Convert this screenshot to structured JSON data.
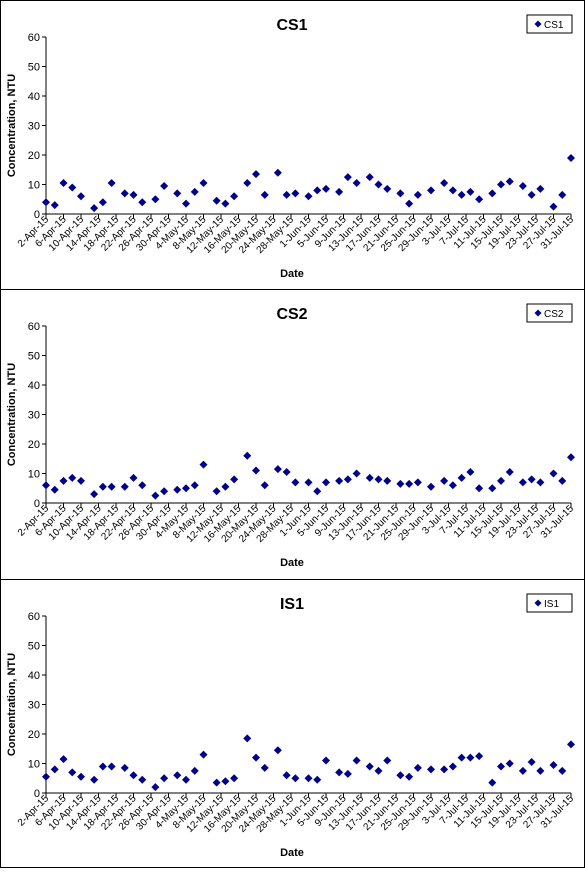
{
  "chart_data": [
    {
      "type": "scatter",
      "title": "CS1",
      "xlabel": "Date",
      "ylabel": "Concentration, NTU",
      "ylim": [
        0,
        60
      ],
      "yticks": [
        0,
        10,
        20,
        30,
        40,
        50,
        60
      ],
      "xlim": [
        "2015-04-02",
        "2015-07-31"
      ],
      "xtick_labels": [
        "2-Apr-15",
        "6-Apr-15",
        "10-Apr-15",
        "14-Apr-15",
        "18-Apr-15",
        "22-Apr-15",
        "26-Apr-15",
        "30-Apr-15",
        "4-May-15",
        "8-May-15",
        "12-May-15",
        "16-May-15",
        "20-May-15",
        "24-May-15",
        "28-May-15",
        "1-Jun-15",
        "5-Jun-15",
        "9-Jun-15",
        "13-Jun-15",
        "17-Jun-15",
        "21-Jun-15",
        "25-Jun-15",
        "29-Jun-15",
        "3-Jul-15",
        "7-Jul-15",
        "11-Jul-15",
        "15-Jul-15",
        "19-Jul-15",
        "23-Jul-15",
        "27-Jul-15",
        "31-Jul-15"
      ],
      "grid": false,
      "legend_position": "top-right",
      "marker_color": "#00008b",
      "series": [
        {
          "name": "CS1",
          "points": [
            [
              "2015-04-02",
              4
            ],
            [
              "2015-04-04",
              3
            ],
            [
              "2015-04-06",
              10.5
            ],
            [
              "2015-04-08",
              9
            ],
            [
              "2015-04-10",
              6
            ],
            [
              "2015-04-13",
              2
            ],
            [
              "2015-04-15",
              4
            ],
            [
              "2015-04-17",
              10.5
            ],
            [
              "2015-04-20",
              7
            ],
            [
              "2015-04-22",
              6.5
            ],
            [
              "2015-04-24",
              4
            ],
            [
              "2015-04-27",
              5
            ],
            [
              "2015-04-29",
              9.5
            ],
            [
              "2015-05-02",
              7
            ],
            [
              "2015-05-04",
              3.5
            ],
            [
              "2015-05-06",
              7.5
            ],
            [
              "2015-05-08",
              10.5
            ],
            [
              "2015-05-11",
              4.5
            ],
            [
              "2015-05-13",
              3.5
            ],
            [
              "2015-05-15",
              6
            ],
            [
              "2015-05-18",
              10.5
            ],
            [
              "2015-05-20",
              13.5
            ],
            [
              "2015-05-22",
              6.5
            ],
            [
              "2015-05-25",
              14
            ],
            [
              "2015-05-27",
              6.5
            ],
            [
              "2015-05-29",
              7
            ],
            [
              "2015-06-01",
              6
            ],
            [
              "2015-06-03",
              8
            ],
            [
              "2015-06-05",
              8.5
            ],
            [
              "2015-06-08",
              7.5
            ],
            [
              "2015-06-10",
              12.5
            ],
            [
              "2015-06-12",
              10.5
            ],
            [
              "2015-06-15",
              12.5
            ],
            [
              "2015-06-17",
              10
            ],
            [
              "2015-06-19",
              8.5
            ],
            [
              "2015-06-22",
              7
            ],
            [
              "2015-06-24",
              3.5
            ],
            [
              "2015-06-26",
              6.5
            ],
            [
              "2015-06-29",
              8
            ],
            [
              "2015-07-02",
              10.5
            ],
            [
              "2015-07-04",
              8
            ],
            [
              "2015-07-06",
              6.5
            ],
            [
              "2015-07-08",
              7.5
            ],
            [
              "2015-07-10",
              5
            ],
            [
              "2015-07-13",
              7
            ],
            [
              "2015-07-15",
              10
            ],
            [
              "2015-07-17",
              11
            ],
            [
              "2015-07-20",
              9.5
            ],
            [
              "2015-07-22",
              6.5
            ],
            [
              "2015-07-24",
              8.5
            ],
            [
              "2015-07-27",
              2.5
            ],
            [
              "2015-07-29",
              6.5
            ],
            [
              "2015-07-31",
              19
            ]
          ]
        }
      ]
    },
    {
      "type": "scatter",
      "title": "CS2",
      "xlabel": "Date",
      "ylabel": "Concentration, NTU",
      "ylim": [
        0,
        60
      ],
      "yticks": [
        0,
        10,
        20,
        30,
        40,
        50,
        60
      ],
      "xlim": [
        "2015-04-02",
        "2015-07-31"
      ],
      "xtick_labels": [
        "2-Apr-15",
        "6-Apr-15",
        "10-Apr-15",
        "14-Apr-15",
        "18-Apr-15",
        "22-Apr-15",
        "26-Apr-15",
        "30-Apr-15",
        "4-May-15",
        "8-May-15",
        "12-May-15",
        "16-May-15",
        "20-May-15",
        "24-May-15",
        "28-May-15",
        "1-Jun-15",
        "5-Jun-15",
        "9-Jun-15",
        "13-Jun-15",
        "17-Jun-15",
        "21-Jun-15",
        "25-Jun-15",
        "29-Jun-15",
        "3-Jul-15",
        "7-Jul-15",
        "11-Jul-15",
        "15-Jul-15",
        "19-Jul-15",
        "23-Jul-15",
        "27-Jul-15",
        "31-Jul-15"
      ],
      "grid": false,
      "legend_position": "top-right",
      "marker_color": "#00008b",
      "series": [
        {
          "name": "CS2",
          "points": [
            [
              "2015-04-02",
              6
            ],
            [
              "2015-04-04",
              4.5
            ],
            [
              "2015-04-06",
              7.5
            ],
            [
              "2015-04-08",
              8.5
            ],
            [
              "2015-04-10",
              7.5
            ],
            [
              "2015-04-13",
              3
            ],
            [
              "2015-04-15",
              5.5
            ],
            [
              "2015-04-17",
              5.5
            ],
            [
              "2015-04-20",
              5.5
            ],
            [
              "2015-04-22",
              8.5
            ],
            [
              "2015-04-24",
              6
            ],
            [
              "2015-04-27",
              2.5
            ],
            [
              "2015-04-29",
              4
            ],
            [
              "2015-05-02",
              4.5
            ],
            [
              "2015-05-04",
              5
            ],
            [
              "2015-05-06",
              6
            ],
            [
              "2015-05-08",
              13
            ],
            [
              "2015-05-11",
              4
            ],
            [
              "2015-05-13",
              5.5
            ],
            [
              "2015-05-15",
              8
            ],
            [
              "2015-05-18",
              16
            ],
            [
              "2015-05-20",
              11
            ],
            [
              "2015-05-22",
              6
            ],
            [
              "2015-05-25",
              11.5
            ],
            [
              "2015-05-27",
              10.5
            ],
            [
              "2015-05-29",
              7
            ],
            [
              "2015-06-01",
              7
            ],
            [
              "2015-06-03",
              4
            ],
            [
              "2015-06-05",
              7
            ],
            [
              "2015-06-08",
              7.5
            ],
            [
              "2015-06-10",
              8
            ],
            [
              "2015-06-12",
              10
            ],
            [
              "2015-06-15",
              8.5
            ],
            [
              "2015-06-17",
              8
            ],
            [
              "2015-06-19",
              7.5
            ],
            [
              "2015-06-22",
              6.5
            ],
            [
              "2015-06-24",
              6.5
            ],
            [
              "2015-06-26",
              7
            ],
            [
              "2015-06-29",
              5.5
            ],
            [
              "2015-07-02",
              7.5
            ],
            [
              "2015-07-04",
              6
            ],
            [
              "2015-07-06",
              8.5
            ],
            [
              "2015-07-08",
              10.5
            ],
            [
              "2015-07-10",
              5
            ],
            [
              "2015-07-13",
              5
            ],
            [
              "2015-07-15",
              7.5
            ],
            [
              "2015-07-17",
              10.5
            ],
            [
              "2015-07-20",
              7
            ],
            [
              "2015-07-22",
              8
            ],
            [
              "2015-07-24",
              7
            ],
            [
              "2015-07-27",
              10
            ],
            [
              "2015-07-29",
              7.5
            ],
            [
              "2015-07-31",
              15.5
            ]
          ]
        }
      ]
    },
    {
      "type": "scatter",
      "title": "IS1",
      "xlabel": "Date",
      "ylabel": "Concentration, NTU",
      "ylim": [
        0,
        60
      ],
      "yticks": [
        0,
        10,
        20,
        30,
        40,
        50,
        60
      ],
      "xlim": [
        "2015-04-02",
        "2015-07-31"
      ],
      "xtick_labels": [
        "2-Apr-15",
        "6-Apr-15",
        "10-Apr-15",
        "14-Apr-15",
        "18-Apr-15",
        "22-Apr-15",
        "26-Apr-15",
        "30-Apr-15",
        "4-May-15",
        "8-May-15",
        "12-May-15",
        "16-May-15",
        "20-May-15",
        "24-May-15",
        "28-May-15",
        "1-Jun-15",
        "5-Jun-15",
        "9-Jun-15",
        "13-Jun-15",
        "17-Jun-15",
        "21-Jun-15",
        "25-Jun-15",
        "29-Jun-15",
        "3-Jul-15",
        "7-Jul-15",
        "11-Jul-15",
        "15-Jul-15",
        "19-Jul-15",
        "23-Jul-15",
        "27-Jul-15",
        "31-Jul-15"
      ],
      "grid": false,
      "legend_position": "top-right",
      "marker_color": "#00008b",
      "series": [
        {
          "name": "IS1",
          "points": [
            [
              "2015-04-02",
              5.5
            ],
            [
              "2015-04-04",
              8
            ],
            [
              "2015-04-06",
              11.5
            ],
            [
              "2015-04-08",
              7
            ],
            [
              "2015-04-10",
              5.5
            ],
            [
              "2015-04-13",
              4.5
            ],
            [
              "2015-04-15",
              9
            ],
            [
              "2015-04-17",
              9
            ],
            [
              "2015-04-20",
              8.5
            ],
            [
              "2015-04-22",
              6
            ],
            [
              "2015-04-24",
              4.5
            ],
            [
              "2015-04-27",
              2
            ],
            [
              "2015-04-29",
              5
            ],
            [
              "2015-05-02",
              6
            ],
            [
              "2015-05-04",
              4.5
            ],
            [
              "2015-05-06",
              7.5
            ],
            [
              "2015-05-08",
              13
            ],
            [
              "2015-05-11",
              3.5
            ],
            [
              "2015-05-13",
              4
            ],
            [
              "2015-05-15",
              5
            ],
            [
              "2015-05-18",
              18.5
            ],
            [
              "2015-05-20",
              12
            ],
            [
              "2015-05-22",
              8.5
            ],
            [
              "2015-05-25",
              14.5
            ],
            [
              "2015-05-27",
              6
            ],
            [
              "2015-05-29",
              5
            ],
            [
              "2015-06-01",
              5
            ],
            [
              "2015-06-03",
              4.5
            ],
            [
              "2015-06-05",
              11
            ],
            [
              "2015-06-08",
              7
            ],
            [
              "2015-06-10",
              6.5
            ],
            [
              "2015-06-12",
              11
            ],
            [
              "2015-06-15",
              9
            ],
            [
              "2015-06-17",
              7.5
            ],
            [
              "2015-06-19",
              11
            ],
            [
              "2015-06-22",
              6
            ],
            [
              "2015-06-24",
              5.5
            ],
            [
              "2015-06-26",
              8.5
            ],
            [
              "2015-06-29",
              8
            ],
            [
              "2015-07-02",
              8
            ],
            [
              "2015-07-04",
              9
            ],
            [
              "2015-07-06",
              12
            ],
            [
              "2015-07-08",
              12
            ],
            [
              "2015-07-10",
              12.5
            ],
            [
              "2015-07-13",
              3.5
            ],
            [
              "2015-07-15",
              9
            ],
            [
              "2015-07-17",
              10
            ],
            [
              "2015-07-20",
              7.5
            ],
            [
              "2015-07-22",
              10.5
            ],
            [
              "2015-07-24",
              7.5
            ],
            [
              "2015-07-27",
              9.5
            ],
            [
              "2015-07-29",
              7.5
            ],
            [
              "2015-07-31",
              16.5
            ]
          ]
        }
      ]
    }
  ]
}
